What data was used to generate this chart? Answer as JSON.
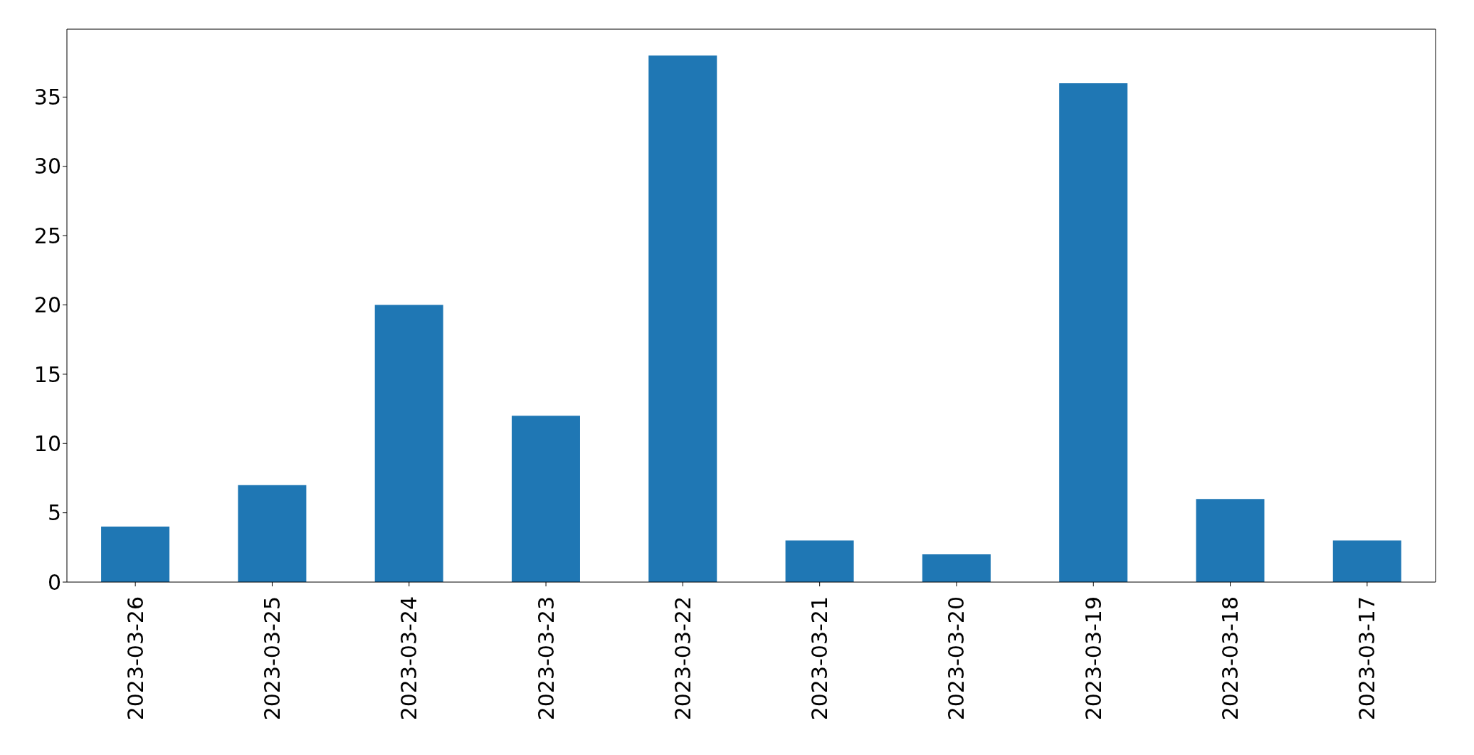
{
  "chart_data": {
    "type": "bar",
    "categories": [
      "2023-03-26",
      "2023-03-25",
      "2023-03-24",
      "2023-03-23",
      "2023-03-22",
      "2023-03-21",
      "2023-03-20",
      "2023-03-19",
      "2023-03-18",
      "2023-03-17"
    ],
    "values": [
      4,
      7,
      20,
      12,
      38,
      3,
      2,
      36,
      6,
      3
    ],
    "color": "#1f77b4",
    "ylim": [
      0,
      39.9
    ],
    "yticks": [
      0,
      5,
      10,
      15,
      20,
      25,
      30,
      35
    ],
    "grid": false
  }
}
